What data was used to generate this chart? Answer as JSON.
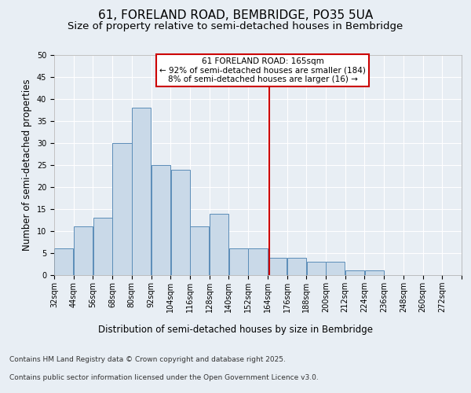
{
  "title": "61, FORELAND ROAD, BEMBRIDGE, PO35 5UA",
  "subtitle": "Size of property relative to semi-detached houses in Bembridge",
  "xlabel": "Distribution of semi-detached houses by size in Bembridge",
  "ylabel": "Number of semi-detached properties",
  "footer_line1": "Contains HM Land Registry data © Crown copyright and database right 2025.",
  "footer_line2": "Contains public sector information licensed under the Open Government Licence v3.0.",
  "bin_labels": [
    "32sqm",
    "44sqm",
    "56sqm",
    "68sqm",
    "80sqm",
    "92sqm",
    "104sqm",
    "116sqm",
    "128sqm",
    "140sqm",
    "152sqm",
    "164sqm",
    "176sqm",
    "188sqm",
    "200sqm",
    "212sqm",
    "224sqm",
    "236sqm",
    "248sqm",
    "260sqm",
    "272sqm"
  ],
  "bin_edges": [
    32,
    44,
    56,
    68,
    80,
    92,
    104,
    116,
    128,
    140,
    152,
    164,
    176,
    188,
    200,
    212,
    224,
    236,
    248,
    260,
    272
  ],
  "bar_heights": [
    6,
    11,
    13,
    30,
    38,
    25,
    24,
    11,
    14,
    6,
    6,
    4,
    4,
    3,
    3,
    1,
    1,
    0,
    0,
    0
  ],
  "bar_color": "#c9d9e8",
  "bar_edge_color": "#5b8db8",
  "reference_line_x": 165,
  "annotation_title": "61 FORELAND ROAD: 165sqm",
  "annotation_line1": "← 92% of semi-detached houses are smaller (184)",
  "annotation_line2": "8% of semi-detached houses are larger (16) →",
  "annotation_box_color": "#cc0000",
  "ylim": [
    0,
    50
  ],
  "yticks": [
    0,
    5,
    10,
    15,
    20,
    25,
    30,
    35,
    40,
    45,
    50
  ],
  "background_color": "#e8eef4",
  "plot_background": "#e8eef4",
  "grid_color": "#ffffff",
  "title_fontsize": 11,
  "subtitle_fontsize": 9.5,
  "axis_label_fontsize": 8.5,
  "tick_fontsize": 7,
  "footer_fontsize": 6.5
}
